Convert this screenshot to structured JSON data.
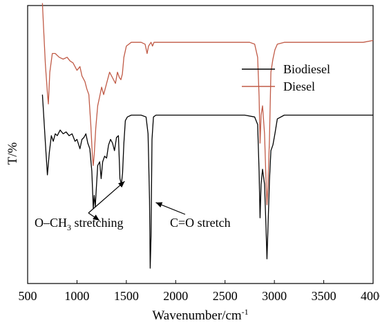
{
  "chart_data": {
    "type": "line",
    "xlabel": "Wavenumber/cm",
    "xlabel_sup": "-1",
    "ylabel": "T/%",
    "xlim": [
      500,
      4000
    ],
    "x_ticks": [
      500,
      1000,
      1500,
      2000,
      2500,
      3000,
      3500,
      4000
    ],
    "x_tick_labels": [
      "500",
      "1000",
      "1500",
      "2000",
      "2500",
      "3000",
      "3500",
      "4000"
    ],
    "y_ticks_shown": false,
    "grid": false,
    "legend_position": "top-right",
    "series": [
      {
        "name": "Biodiesel",
        "color": "#000000",
        "points": [
          [
            650,
            0.34
          ],
          [
            680,
            0.6
          ],
          [
            700,
            0.77
          ],
          [
            720,
            0.65
          ],
          [
            740,
            0.56
          ],
          [
            760,
            0.59
          ],
          [
            780,
            0.55
          ],
          [
            800,
            0.56
          ],
          [
            830,
            0.53
          ],
          [
            860,
            0.55
          ],
          [
            890,
            0.54
          ],
          [
            920,
            0.56
          ],
          [
            950,
            0.55
          ],
          [
            980,
            0.59
          ],
          [
            1000,
            0.58
          ],
          [
            1030,
            0.63
          ],
          [
            1050,
            0.58
          ],
          [
            1070,
            0.57
          ],
          [
            1090,
            0.55
          ],
          [
            1110,
            0.6
          ],
          [
            1130,
            0.63
          ],
          [
            1150,
            0.75
          ],
          [
            1165,
            0.95
          ],
          [
            1175,
            0.88
          ],
          [
            1185,
            0.94
          ],
          [
            1195,
            0.85
          ],
          [
            1210,
            0.72
          ],
          [
            1230,
            0.7
          ],
          [
            1245,
            0.79
          ],
          [
            1260,
            0.7
          ],
          [
            1280,
            0.67
          ],
          [
            1300,
            0.68
          ],
          [
            1320,
            0.61
          ],
          [
            1340,
            0.58
          ],
          [
            1360,
            0.6
          ],
          [
            1380,
            0.64
          ],
          [
            1400,
            0.57
          ],
          [
            1420,
            0.56
          ],
          [
            1435,
            0.79
          ],
          [
            1450,
            0.82
          ],
          [
            1462,
            0.76
          ],
          [
            1475,
            0.6
          ],
          [
            1490,
            0.48
          ],
          [
            1510,
            0.46
          ],
          [
            1550,
            0.45
          ],
          [
            1600,
            0.45
          ],
          [
            1650,
            0.45
          ],
          [
            1700,
            0.46
          ],
          [
            1720,
            0.55
          ],
          [
            1735,
            0.9
          ],
          [
            1742,
            1.27
          ],
          [
            1750,
            1.1
          ],
          [
            1760,
            0.58
          ],
          [
            1775,
            0.46
          ],
          [
            1800,
            0.45
          ],
          [
            1900,
            0.45
          ],
          [
            2000,
            0.45
          ],
          [
            2100,
            0.45
          ],
          [
            2200,
            0.45
          ],
          [
            2300,
            0.45
          ],
          [
            2400,
            0.45
          ],
          [
            2500,
            0.45
          ],
          [
            2600,
            0.45
          ],
          [
            2700,
            0.45
          ],
          [
            2800,
            0.46
          ],
          [
            2830,
            0.5
          ],
          [
            2845,
            0.75
          ],
          [
            2855,
            1.0
          ],
          [
            2865,
            0.82
          ],
          [
            2880,
            0.74
          ],
          [
            2900,
            0.82
          ],
          [
            2915,
            1.05
          ],
          [
            2925,
            1.22
          ],
          [
            2935,
            1.05
          ],
          [
            2950,
            0.8
          ],
          [
            2965,
            0.64
          ],
          [
            2985,
            0.61
          ],
          [
            3005,
            0.55
          ],
          [
            3030,
            0.47
          ],
          [
            3100,
            0.45
          ],
          [
            3200,
            0.45
          ],
          [
            3300,
            0.45
          ],
          [
            3400,
            0.45
          ],
          [
            3500,
            0.45
          ],
          [
            3600,
            0.45
          ],
          [
            3700,
            0.45
          ],
          [
            3800,
            0.45
          ],
          [
            3900,
            0.45
          ],
          [
            4000,
            0.45
          ]
        ]
      },
      {
        "name": "Diesel",
        "color": "#c05a46",
        "points": [
          [
            650,
            -0.15
          ],
          [
            660,
            -0.03
          ],
          [
            680,
            0.18
          ],
          [
            700,
            0.33
          ],
          [
            710,
            0.39
          ],
          [
            725,
            0.22
          ],
          [
            750,
            0.12
          ],
          [
            780,
            0.12
          ],
          [
            820,
            0.14
          ],
          [
            860,
            0.15
          ],
          [
            900,
            0.14
          ],
          [
            930,
            0.16
          ],
          [
            960,
            0.17
          ],
          [
            1000,
            0.21
          ],
          [
            1030,
            0.19
          ],
          [
            1050,
            0.24
          ],
          [
            1080,
            0.27
          ],
          [
            1100,
            0.31
          ],
          [
            1120,
            0.34
          ],
          [
            1140,
            0.5
          ],
          [
            1155,
            0.66
          ],
          [
            1165,
            0.72
          ],
          [
            1175,
            0.66
          ],
          [
            1190,
            0.52
          ],
          [
            1210,
            0.4
          ],
          [
            1230,
            0.35
          ],
          [
            1250,
            0.3
          ],
          [
            1270,
            0.34
          ],
          [
            1300,
            0.28
          ],
          [
            1330,
            0.22
          ],
          [
            1360,
            0.25
          ],
          [
            1390,
            0.28
          ],
          [
            1410,
            0.22
          ],
          [
            1430,
            0.25
          ],
          [
            1445,
            0.26
          ],
          [
            1460,
            0.23
          ],
          [
            1475,
            0.14
          ],
          [
            1500,
            0.08
          ],
          [
            1550,
            0.06
          ],
          [
            1600,
            0.06
          ],
          [
            1650,
            0.06
          ],
          [
            1690,
            0.07
          ],
          [
            1710,
            0.12
          ],
          [
            1725,
            0.08
          ],
          [
            1750,
            0.06
          ],
          [
            1765,
            0.08
          ],
          [
            1780,
            0.06
          ],
          [
            1850,
            0.06
          ],
          [
            1950,
            0.06
          ],
          [
            2050,
            0.06
          ],
          [
            2150,
            0.06
          ],
          [
            2250,
            0.06
          ],
          [
            2350,
            0.06
          ],
          [
            2450,
            0.06
          ],
          [
            2550,
            0.06
          ],
          [
            2650,
            0.06
          ],
          [
            2750,
            0.06
          ],
          [
            2800,
            0.07
          ],
          [
            2830,
            0.14
          ],
          [
            2845,
            0.35
          ],
          [
            2855,
            0.6
          ],
          [
            2865,
            0.45
          ],
          [
            2880,
            0.4
          ],
          [
            2900,
            0.55
          ],
          [
            2915,
            0.8
          ],
          [
            2925,
            0.93
          ],
          [
            2935,
            0.82
          ],
          [
            2950,
            0.58
          ],
          [
            2965,
            0.22
          ],
          [
            2985,
            0.15
          ],
          [
            3005,
            0.1
          ],
          [
            3030,
            0.07
          ],
          [
            3100,
            0.06
          ],
          [
            3300,
            0.06
          ],
          [
            3500,
            0.06
          ],
          [
            3700,
            0.06
          ],
          [
            3900,
            0.06
          ],
          [
            4000,
            0.05
          ]
        ]
      }
    ],
    "annotations": [
      {
        "id": "och3",
        "text_main": "O–CH",
        "text_sub": "3",
        "text_rest": " stretching",
        "targets": [
          [
            1185,
            0.94
          ],
          [
            1462,
            0.76
          ]
        ]
      },
      {
        "id": "co",
        "text_main": "C=O stretch",
        "targets": [
          [
            1742,
            1.27
          ]
        ]
      }
    ]
  }
}
